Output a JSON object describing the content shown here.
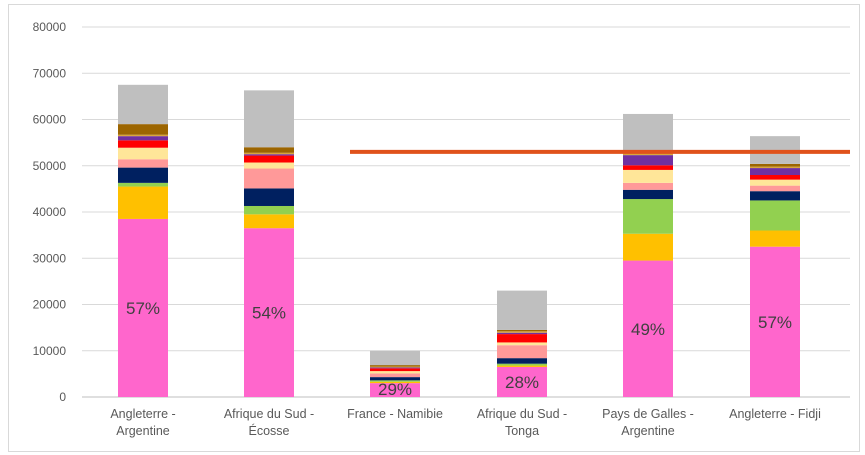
{
  "chart_data": {
    "type": "bar",
    "stacked": true,
    "title": "",
    "xlabel": "",
    "ylabel": "",
    "ylim": [
      0,
      80000
    ],
    "yticks": [
      0,
      10000,
      20000,
      30000,
      40000,
      50000,
      60000,
      70000,
      80000
    ],
    "grid": true,
    "legend": "none",
    "categories": [
      [
        "Angleterre -",
        "Argentine"
      ],
      [
        "Afrique du Sud -",
        "Écosse"
      ],
      [
        "France - Namibie"
      ],
      [
        "Afrique du Sud -",
        "Tonga"
      ],
      [
        "Pays de Galles -",
        "Argentine"
      ],
      [
        "Angleterre - Fidji"
      ]
    ],
    "series": [
      {
        "color": "#ff66cc",
        "values": [
          38500,
          36500,
          3000,
          6500,
          29500,
          32500
        ]
      },
      {
        "color": "#ffc000",
        "values": [
          7000,
          3000,
          300,
          300,
          5800,
          3500
        ]
      },
      {
        "color": "#92d050",
        "values": [
          800,
          1800,
          300,
          400,
          7500,
          6500
        ]
      },
      {
        "color": "#002060",
        "values": [
          3300,
          3800,
          700,
          1200,
          2000,
          2000
        ]
      },
      {
        "color": "#ff9999",
        "values": [
          1800,
          4300,
          800,
          2800,
          1500,
          1200
        ]
      },
      {
        "color": "#ffe699",
        "values": [
          2500,
          1300,
          500,
          600,
          2800,
          1300
        ]
      },
      {
        "color": "#ff0000",
        "values": [
          1600,
          1500,
          600,
          1800,
          1000,
          1000
        ]
      },
      {
        "color": "#7030a0",
        "values": [
          900,
          300,
          200,
          300,
          2200,
          1500
        ]
      },
      {
        "color": "#d9a63a",
        "values": [
          300,
          300,
          200,
          300,
          300,
          300
        ]
      },
      {
        "color": "#9c6500",
        "values": [
          2300,
          1200,
          300,
          300,
          600,
          600
        ]
      },
      {
        "color": "#bfbfbf",
        "values": [
          8500,
          12300,
          3100,
          8500,
          8000,
          6000
        ]
      }
    ],
    "bar_labels": [
      "57%",
      "54%",
      "29%",
      "28%",
      "49%",
      "57%"
    ],
    "reference_line": {
      "value": 53000,
      "color": "#e0521b",
      "from_category_index": 2
    }
  }
}
